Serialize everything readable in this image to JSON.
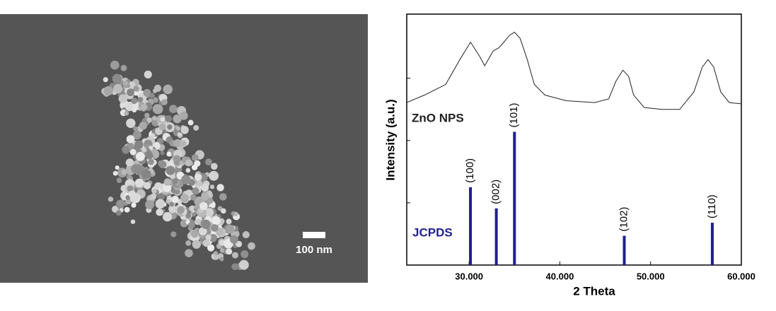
{
  "sem": {
    "scale_label": "100 nm"
  },
  "chart_data": {
    "type": "xrd",
    "xlabel": "2 Theta",
    "ylabel": "Intensity (a.u.)",
    "xlim": [
      23.13,
      60
    ],
    "xticks": [
      {
        "value": 30,
        "label": "30.000"
      },
      {
        "value": 40,
        "label": "40.000"
      },
      {
        "value": 50,
        "label": "50.000"
      },
      {
        "value": 60,
        "label": "60.000"
      }
    ],
    "ylim": [
      0,
      4.03
    ],
    "yticks": [
      1,
      2,
      3
    ],
    "series": [
      {
        "name": "ZnO NPS",
        "type": "line",
        "color": "#222222",
        "x": [
          23.13,
          25.08,
          27.42,
          28.98,
          30.16,
          31.17,
          31.72,
          32.11,
          32.66,
          33.28,
          33.83,
          34.45,
          35.0,
          35.63,
          36.41,
          37.19,
          38.36,
          40.7,
          43.83,
          45.39,
          46.17,
          46.95,
          47.58,
          48.13,
          49.3,
          51.25,
          53.2,
          54.77,
          55.7,
          56.33,
          56.95,
          57.73,
          58.67,
          60
        ],
        "values": [
          2.61,
          2.73,
          2.9,
          3.3,
          3.58,
          3.35,
          3.2,
          3.3,
          3.44,
          3.49,
          3.58,
          3.69,
          3.74,
          3.64,
          3.3,
          2.9,
          2.73,
          2.64,
          2.61,
          2.67,
          2.95,
          3.13,
          3.03,
          2.73,
          2.53,
          2.5,
          2.5,
          2.78,
          3.18,
          3.3,
          3.18,
          2.78,
          2.61,
          2.59
        ]
      },
      {
        "name": "JCPDS",
        "type": "stem",
        "color": "#1f1f8f",
        "x": [
          30.15,
          33.0,
          35.0,
          47.1,
          56.8
        ],
        "values": [
          1.25,
          0.91,
          2.14,
          0.47,
          0.68
        ],
        "labels": [
          "(100)",
          "(002)",
          "(101)",
          "(102)",
          "(110)"
        ]
      }
    ]
  }
}
